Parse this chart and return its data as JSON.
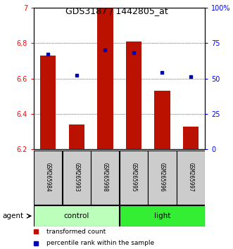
{
  "title": "GDS3187 / 1442805_at",
  "samples": [
    "GSM265984",
    "GSM265993",
    "GSM265998",
    "GSM265995",
    "GSM265996",
    "GSM265997"
  ],
  "bar_values": [
    6.73,
    6.34,
    7.0,
    6.81,
    6.53,
    6.33
  ],
  "bar_bottom": 6.2,
  "percentile_values": [
    67,
    52,
    70,
    68,
    54,
    51
  ],
  "bar_color": "#BB1100",
  "dot_color": "#0000BB",
  "ylim_left": [
    6.2,
    7.0
  ],
  "ylim_right": [
    0,
    100
  ],
  "yticks_left": [
    6.2,
    6.4,
    6.6,
    6.8,
    7.0
  ],
  "ytick_labels_left": [
    "6.2",
    "6.4",
    "6.6",
    "6.8",
    "7"
  ],
  "yticks_right": [
    0,
    25,
    50,
    75,
    100
  ],
  "ytick_labels_right": [
    "0",
    "25",
    "50",
    "75",
    "100%"
  ],
  "groups": [
    {
      "label": "control",
      "indices": [
        0,
        1,
        2
      ],
      "color": "#BBFFBB"
    },
    {
      "label": "light",
      "indices": [
        3,
        4,
        5
      ],
      "color": "#33EE33"
    }
  ],
  "group_label": "agent",
  "legend_items": [
    {
      "label": "transformed count",
      "color": "#BB1100",
      "marker": "s"
    },
    {
      "label": "percentile rank within the sample",
      "color": "#0000BB",
      "marker": "s"
    }
  ],
  "bar_width": 0.55,
  "title_fontsize": 9,
  "tick_label_fontsize": 7,
  "legend_fontsize": 6.5,
  "sample_fontsize": 5.5,
  "group_fontsize": 7.5,
  "agent_fontsize": 7.5
}
